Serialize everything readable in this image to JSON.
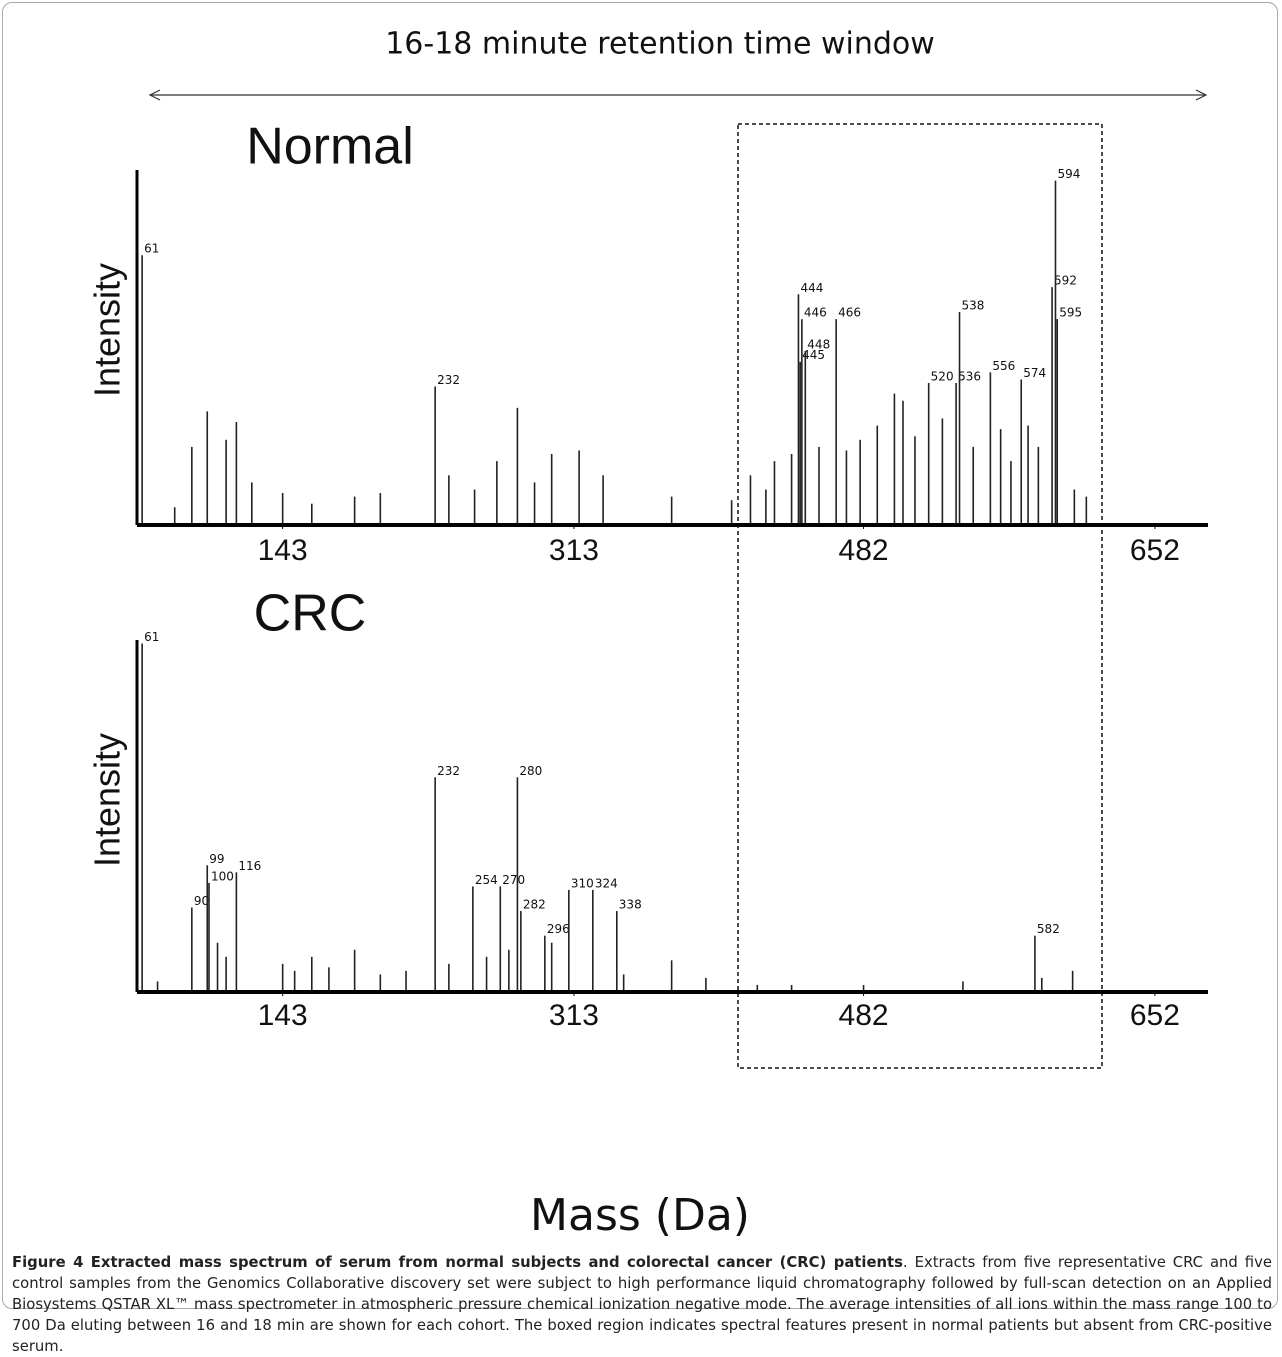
{
  "header": "16-18 minute retention time window",
  "x_label": "Mass (Da)",
  "chart_data": [
    {
      "type": "bar",
      "title": "Normal",
      "y_label": "Intensity",
      "color": "#222222",
      "xlim": [
        58,
        683
      ],
      "ylim": [
        0,
        100
      ],
      "xticks": [
        143,
        313,
        482,
        652
      ],
      "x": [
        61,
        80,
        90,
        99,
        110,
        116,
        125,
        143,
        160,
        185,
        200,
        232,
        240,
        255,
        268,
        280,
        290,
        300,
        316,
        330,
        370,
        405,
        416,
        425,
        430,
        440,
        444,
        445,
        446,
        448,
        456,
        466,
        472,
        480,
        490,
        500,
        505,
        512,
        520,
        528,
        536,
        538,
        546,
        556,
        562,
        568,
        574,
        578,
        584,
        592,
        594,
        595,
        605,
        612
      ],
      "values": [
        76,
        5,
        22,
        32,
        24,
        29,
        12,
        9,
        6,
        8,
        9,
        39,
        14,
        10,
        18,
        33,
        12,
        20,
        21,
        14,
        8,
        7,
        14,
        10,
        18,
        20,
        65,
        46,
        58,
        49,
        22,
        58,
        21,
        24,
        28,
        37,
        35,
        25,
        40,
        30,
        40,
        60,
        22,
        43,
        27,
        18,
        41,
        28,
        22,
        67,
        97,
        58,
        10,
        8
      ],
      "peak_labels": [
        "61",
        null,
        null,
        null,
        null,
        null,
        null,
        null,
        null,
        null,
        null,
        "232",
        null,
        null,
        null,
        null,
        null,
        null,
        null,
        null,
        null,
        null,
        null,
        null,
        null,
        null,
        "444",
        "445",
        "446",
        "448",
        null,
        "466",
        null,
        null,
        null,
        null,
        null,
        null,
        "520",
        null,
        "536",
        "538",
        null,
        "556",
        null,
        null,
        "574",
        null,
        null,
        "592",
        "594",
        "595",
        null,
        null
      ]
    },
    {
      "type": "bar",
      "title": "CRC",
      "y_label": "Intensity",
      "color": "#222222",
      "xlim": [
        58,
        683
      ],
      "ylim": [
        0,
        100
      ],
      "xticks": [
        143,
        313,
        482,
        652
      ],
      "x": [
        61,
        70,
        90,
        99,
        100,
        105,
        110,
        116,
        143,
        150,
        160,
        170,
        185,
        200,
        215,
        232,
        240,
        254,
        262,
        270,
        275,
        280,
        282,
        296,
        300,
        310,
        324,
        338,
        342,
        370,
        390,
        420,
        440,
        482,
        540,
        582,
        586,
        604
      ],
      "values": [
        99,
        3,
        24,
        36,
        31,
        14,
        10,
        34,
        8,
        6,
        10,
        7,
        12,
        5,
        6,
        61,
        8,
        30,
        10,
        30,
        12,
        61,
        23,
        16,
        14,
        29,
        29,
        23,
        5,
        9,
        4,
        2,
        2,
        2,
        3,
        16,
        4,
        6
      ],
      "peak_labels": [
        "61",
        null,
        "90",
        "99",
        "100",
        null,
        null,
        "116",
        null,
        null,
        null,
        null,
        null,
        null,
        null,
        "232",
        null,
        "254",
        null,
        "270",
        null,
        "280",
        "282",
        "296",
        null,
        "310",
        "324",
        "338",
        null,
        null,
        null,
        null,
        null,
        null,
        null,
        "582",
        null,
        null
      ]
    }
  ],
  "caption": {
    "title": "Figure 4 Extracted mass spectrum of serum from normal subjects and colorectal cancer (CRC) patients",
    "text": ". Extracts from five representative CRC and five control samples from the Genomics Collaborative discovery set were subject to high performance liquid chromatography followed by full-scan detection on an Applied Biosystems QSTAR XL™ mass spectrometer in atmospheric pressure chemical ionization negative mode. The average intensities of all ions within the mass range 100 to 700 Da eluting between 16 and 18 min are shown for each cohort. The boxed region indicates spectral features present in normal patients but absent from CRC-positive serum."
  }
}
